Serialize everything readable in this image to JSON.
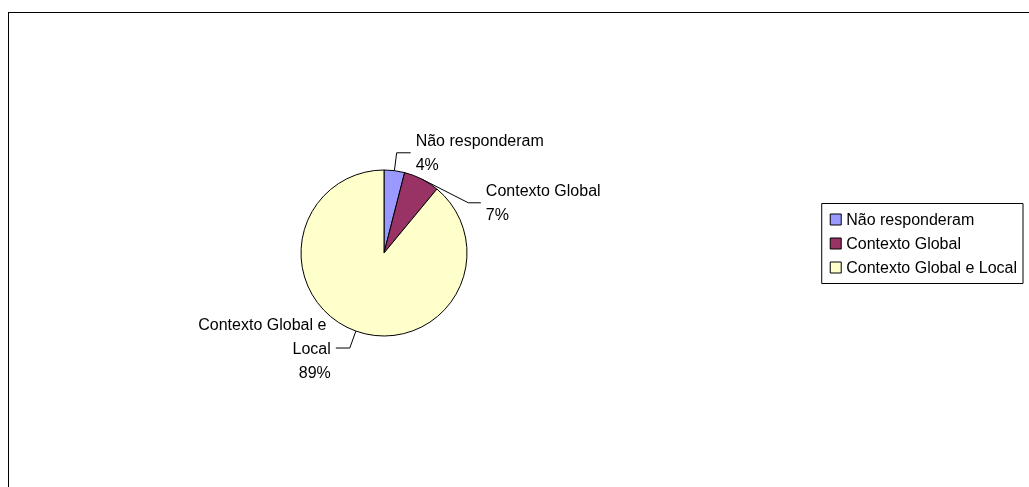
{
  "chart_data": {
    "type": "pie",
    "categories": [
      "Não responderam",
      "Contexto Global",
      "Contexto Global e Local"
    ],
    "values": [
      4,
      7,
      89
    ],
    "colors": [
      "#9999ff",
      "#993366",
      "#ffffcc"
    ],
    "value_labels": [
      "4%",
      "7%",
      "89%"
    ],
    "legend": "right"
  }
}
